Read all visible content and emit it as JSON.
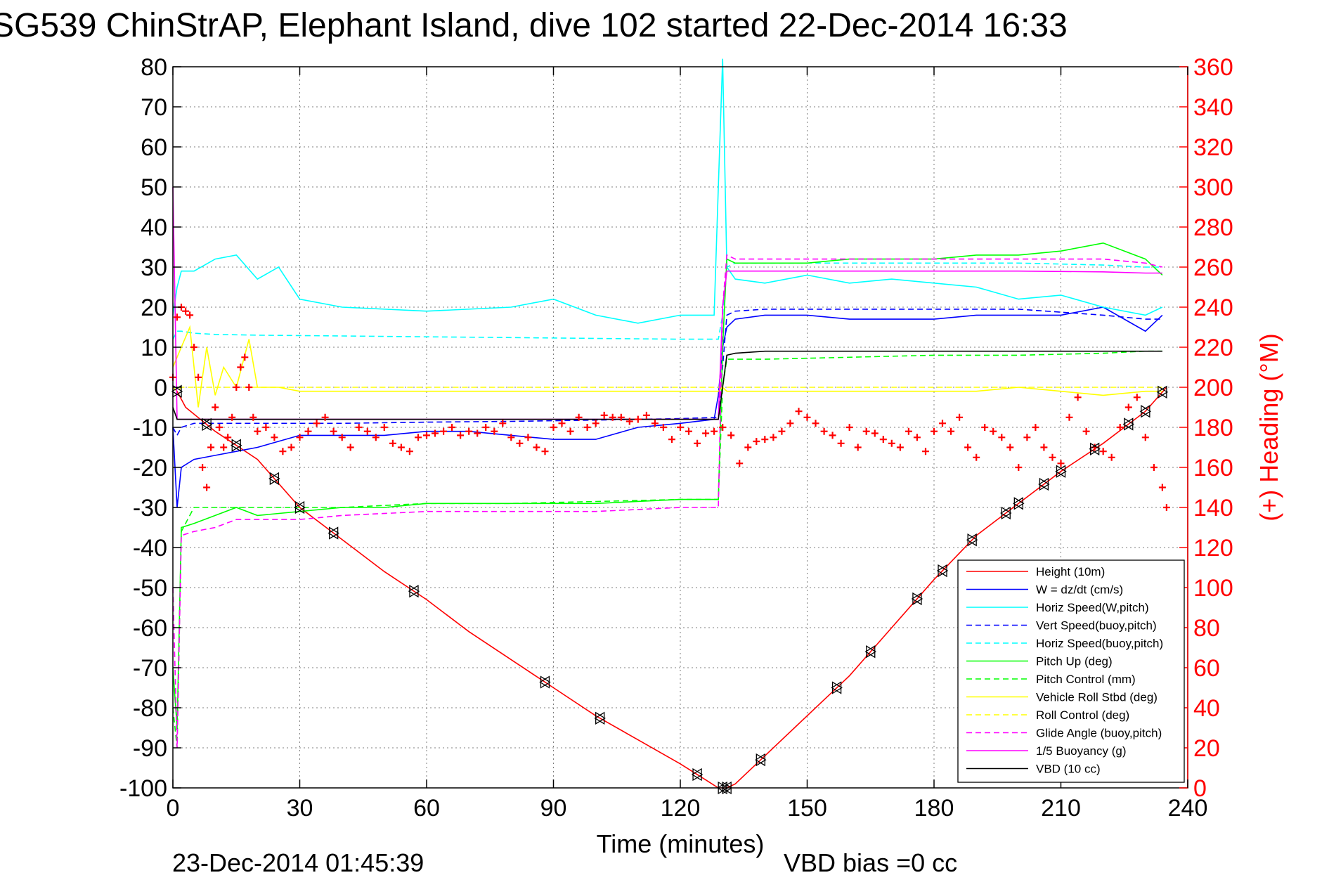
{
  "chart_data": {
    "type": "line",
    "title": "SG539 ChinStrAP, Elephant Island, dive 102 started 22-Dec-2014 16:33",
    "xlabel": "Time (minutes)",
    "ylabel_right": "(+) Heading (°M)",
    "xlim": [
      0,
      240
    ],
    "ylim": [
      -100,
      80
    ],
    "ylim_right": [
      0,
      360
    ],
    "x_ticks": [
      "0",
      "30",
      "60",
      "90",
      "120",
      "150",
      "180",
      "210",
      "240"
    ],
    "y_ticks": [
      "80",
      "70",
      "60",
      "50",
      "40",
      "30",
      "20",
      "10",
      "0",
      "-10",
      "-20",
      "-30",
      "-40",
      "-50",
      "-60",
      "-70",
      "-80",
      "-90",
      "-100"
    ],
    "y_ticks_right": [
      "360",
      "340",
      "320",
      "300",
      "280",
      "260",
      "240",
      "220",
      "200",
      "180",
      "160",
      "140",
      "120",
      "100",
      "80",
      "60",
      "40",
      "20",
      "0"
    ],
    "grid": true,
    "legend_position": "bottom-right",
    "colors": {
      "height": "#ff0000",
      "w": "#0000ff",
      "horiz": "#00ffff",
      "pitch": "#00ff00",
      "roll": "#ffff00",
      "glide": "#ff00ff",
      "vbd": "#000000",
      "heading": "#ff0000",
      "right_axis": "#ff0000"
    },
    "series": [
      {
        "name": "Height (10m)",
        "color": "#ff0000",
        "style": "solid",
        "x": [
          0,
          1,
          3,
          10,
          20,
          30,
          40,
          50,
          60,
          70,
          80,
          90,
          100,
          110,
          120,
          126,
          129,
          130,
          131,
          133,
          140,
          150,
          160,
          170,
          180,
          190,
          200,
          210,
          220,
          230,
          235
        ],
        "y": [
          0,
          -1,
          -5,
          -11,
          -18,
          -30,
          -38,
          -46,
          -53,
          -61,
          -68,
          -75,
          -82,
          -88,
          -94,
          -98,
          -100,
          -100,
          -100,
          -99,
          -92,
          -82,
          -72,
          -60,
          -48,
          -37,
          -29,
          -21,
          -14,
          -6,
          0
        ]
      },
      {
        "name": "W = dz/dt (cm/s)",
        "color": "#0000ff",
        "style": "solid",
        "x": [
          0,
          1,
          2,
          5,
          10,
          15,
          20,
          30,
          40,
          50,
          60,
          70,
          80,
          90,
          100,
          110,
          120,
          128,
          129,
          130,
          131,
          133,
          140,
          150,
          160,
          170,
          180,
          190,
          200,
          210,
          220,
          230,
          234
        ],
        "y": [
          -10,
          -30,
          -20,
          -18,
          -17,
          -16,
          -15,
          -12,
          -12,
          -12,
          -11,
          -11,
          -12,
          -13,
          -13,
          -10,
          -9,
          -8,
          -2,
          10,
          15,
          17,
          18,
          18,
          17,
          17,
          17,
          18,
          18,
          18,
          20,
          14,
          18
        ]
      },
      {
        "name": "Horiz Speed(W,pitch)",
        "color": "#00ffff",
        "style": "solid",
        "x": [
          0,
          1,
          2,
          5,
          10,
          15,
          20,
          25,
          30,
          40,
          60,
          80,
          90,
          100,
          110,
          120,
          128,
          129,
          130,
          131,
          133,
          140,
          150,
          160,
          170,
          180,
          190,
          200,
          210,
          220,
          230,
          234
        ],
        "y": [
          18,
          25,
          29,
          29,
          32,
          33,
          27,
          30,
          22,
          20,
          19,
          20,
          22,
          18,
          16,
          18,
          18,
          50,
          82,
          30,
          27,
          26,
          28,
          26,
          27,
          26,
          25,
          22,
          23,
          20,
          18,
          20
        ]
      },
      {
        "name": "Vert Speed(buoy,pitch)",
        "color": "#0000ff",
        "style": "dashed",
        "x": [
          0,
          1,
          2,
          5,
          10,
          20,
          40,
          60,
          80,
          100,
          120,
          129,
          130,
          131,
          133,
          140,
          160,
          180,
          200,
          220,
          230,
          234
        ],
        "y": [
          -10,
          -12,
          -10,
          -9,
          -9,
          -9,
          -9,
          -8.7,
          -8.5,
          -8.2,
          -7.8,
          -7.5,
          5,
          18,
          19,
          19.5,
          19.5,
          19.5,
          19.5,
          18,
          17,
          17
        ]
      },
      {
        "name": "Horiz Speed(buoy,pitch)",
        "color": "#00ffff",
        "style": "dashed",
        "x": [
          0,
          1,
          2,
          5,
          10,
          20,
          40,
          60,
          80,
          100,
          120,
          129,
          130,
          131,
          133,
          140,
          160,
          180,
          200,
          220,
          230,
          234
        ],
        "y": [
          12,
          14,
          14,
          13.5,
          13.2,
          13,
          12.8,
          12.6,
          12.4,
          12.2,
          12,
          12,
          18,
          30,
          31,
          31,
          31,
          31,
          31,
          30.5,
          30,
          30
        ]
      },
      {
        "name": "Pitch Up (deg)",
        "color": "#00ff00",
        "style": "solid",
        "x": [
          0,
          1,
          2,
          5,
          10,
          15,
          20,
          30,
          40,
          50,
          60,
          80,
          100,
          120,
          128,
          129,
          130,
          131,
          133,
          140,
          150,
          160,
          170,
          180,
          190,
          200,
          210,
          220,
          230,
          234
        ],
        "y": [
          -70,
          -85,
          -35,
          -34,
          -32,
          -30,
          -32,
          -31,
          -30,
          -30,
          -29,
          -29,
          -29,
          -28,
          -28,
          -28,
          10,
          32,
          31,
          31,
          31,
          32,
          32,
          32,
          33,
          33,
          34,
          36,
          32,
          28
        ]
      },
      {
        "name": "Pitch Control (mm)",
        "color": "#00ff00",
        "style": "dashed",
        "x": [
          0,
          1,
          2,
          5,
          10,
          20,
          40,
          60,
          80,
          100,
          120,
          129,
          130,
          131,
          133,
          140,
          160,
          180,
          200,
          220,
          230,
          234
        ],
        "y": [
          -80,
          -90,
          -36,
          -30,
          -30,
          -30,
          -30,
          -29,
          -29,
          -28.5,
          -28,
          -28,
          0,
          7,
          7,
          7,
          7.5,
          8,
          8,
          8.5,
          9,
          9
        ]
      },
      {
        "name": "Vehicle Roll Stbd (deg)",
        "color": "#ffff00",
        "style": "solid",
        "x": [
          0,
          2,
          4,
          6,
          8,
          10,
          12,
          15,
          18,
          20,
          25,
          30,
          40,
          50,
          60,
          70,
          80,
          90,
          100,
          110,
          120,
          129,
          130,
          131,
          140,
          150,
          160,
          170,
          180,
          190,
          200,
          210,
          220,
          230,
          234
        ],
        "y": [
          5,
          10,
          15,
          -5,
          10,
          -2,
          5,
          0,
          12,
          0,
          0,
          -1,
          -1,
          -1,
          -1,
          -1,
          -1,
          -1,
          -1,
          -1,
          -1,
          -1,
          0,
          -1,
          -1,
          -1,
          -1,
          -1,
          -1,
          -1,
          0,
          -1,
          -2,
          -1,
          -1
        ]
      },
      {
        "name": "Roll Control (deg)",
        "color": "#ffff00",
        "style": "dashed",
        "x": [
          0,
          1,
          2,
          5,
          10,
          20,
          40,
          60,
          80,
          100,
          120,
          129,
          130,
          131,
          140,
          160,
          180,
          200,
          210,
          220,
          230,
          234
        ],
        "y": [
          0,
          -1,
          0,
          0,
          0,
          0,
          0,
          0,
          0,
          0,
          0,
          0,
          0,
          0,
          0,
          0,
          0,
          0,
          0,
          0,
          0,
          0
        ]
      },
      {
        "name": "Glide Angle (buoy,pitch)",
        "color": "#ff00ff",
        "style": "dashed",
        "x": [
          0,
          1,
          2,
          5,
          10,
          15,
          20,
          30,
          40,
          60,
          80,
          100,
          120,
          128,
          129,
          130,
          131,
          133,
          140,
          160,
          180,
          200,
          220,
          230,
          234
        ],
        "y": [
          -50,
          -90,
          -37,
          -36,
          -35,
          -33,
          -33,
          -33,
          -32,
          -31,
          -31,
          -31,
          -30,
          -30,
          -30,
          20,
          33,
          32,
          32,
          32,
          32,
          32,
          32,
          31,
          30
        ]
      },
      {
        "name": "1/5 Buoyancy (g)",
        "color": "#ff00ff",
        "style": "solid",
        "x": [
          0,
          1,
          2,
          5,
          10,
          20,
          40,
          60,
          80,
          100,
          120,
          129,
          130,
          131,
          133,
          140,
          160,
          180,
          200,
          220,
          230,
          234
        ],
        "y": [
          50,
          -8,
          -8,
          -8,
          -8,
          -8,
          -8,
          -8,
          -8,
          -8,
          -8,
          -8,
          20,
          29,
          29,
          29,
          29,
          29,
          29,
          28.8,
          28.5,
          28.5
        ]
      },
      {
        "name": "VBD (10 cc)",
        "color": "#000000",
        "style": "solid",
        "x": [
          0,
          1,
          2,
          5,
          10,
          20,
          40,
          60,
          80,
          100,
          120,
          129,
          130,
          131,
          133,
          140,
          160,
          180,
          200,
          220,
          230,
          234
        ],
        "y": [
          -5,
          -8,
          -8,
          -8,
          -8,
          -8,
          -8,
          -8,
          -8,
          -8,
          -8,
          -8,
          0,
          8,
          8.5,
          9,
          9,
          9,
          9,
          9,
          9,
          9
        ]
      }
    ],
    "heading": {
      "name": "(+) Heading (°M)",
      "color": "#ff0000",
      "x": [
        0,
        1,
        2,
        3,
        4,
        5,
        6,
        7,
        8,
        9,
        10,
        11,
        12,
        13,
        14,
        15,
        16,
        17,
        18,
        19,
        20,
        22,
        24,
        26,
        28,
        30,
        32,
        34,
        36,
        38,
        40,
        42,
        44,
        46,
        48,
        50,
        52,
        54,
        56,
        58,
        60,
        62,
        64,
        66,
        68,
        70,
        72,
        74,
        76,
        78,
        80,
        82,
        84,
        86,
        88,
        90,
        92,
        94,
        96,
        98,
        100,
        102,
        104,
        106,
        108,
        110,
        112,
        114,
        116,
        118,
        120,
        122,
        124,
        126,
        128,
        130,
        132,
        134,
        136,
        138,
        140,
        142,
        144,
        146,
        148,
        150,
        152,
        154,
        156,
        158,
        160,
        162,
        164,
        166,
        168,
        170,
        172,
        174,
        176,
        178,
        180,
        182,
        184,
        186,
        188,
        190,
        192,
        194,
        196,
        198,
        200,
        202,
        204,
        206,
        208,
        210,
        212,
        214,
        216,
        218,
        220,
        222,
        224,
        226,
        228,
        230,
        232,
        234,
        235
      ],
      "y": [
        205,
        235,
        240,
        238,
        236,
        220,
        205,
        160,
        150,
        170,
        190,
        180,
        170,
        175,
        185,
        200,
        210,
        215,
        200,
        185,
        178,
        180,
        175,
        168,
        170,
        175,
        178,
        182,
        185,
        178,
        175,
        170,
        180,
        178,
        175,
        180,
        172,
        170,
        168,
        175,
        176,
        177,
        178,
        180,
        176,
        178,
        177,
        180,
        178,
        182,
        175,
        172,
        175,
        170,
        168,
        180,
        182,
        178,
        185,
        180,
        182,
        186,
        185,
        185,
        183,
        184,
        186,
        182,
        180,
        174,
        180,
        178,
        172,
        177,
        178,
        180,
        176,
        162,
        170,
        173,
        174,
        175,
        178,
        182,
        188,
        185,
        182,
        178,
        176,
        172,
        180,
        170,
        178,
        177,
        174,
        172,
        170,
        178,
        175,
        168,
        178,
        182,
        178,
        185,
        170,
        165,
        180,
        178,
        175,
        170,
        160,
        175,
        180,
        170,
        165,
        162,
        185,
        195,
        178,
        170,
        168,
        165,
        180,
        190,
        195,
        175,
        160,
        150,
        140
      ]
    },
    "dive_markers": {
      "name": "black triangles along Height",
      "x": [
        1,
        8,
        15,
        24,
        30,
        38,
        57,
        88,
        101,
        124,
        130,
        131,
        139,
        157,
        165,
        176,
        182,
        189,
        197,
        200,
        206,
        210,
        218,
        226,
        230,
        234
      ]
    },
    "legend": [
      {
        "label": "Height (10m)",
        "color": "#ff0000",
        "style": "solid"
      },
      {
        "label": "W = dz/dt (cm/s)",
        "color": "#0000ff",
        "style": "solid"
      },
      {
        "label": "Horiz Speed(W,pitch)",
        "color": "#00ffff",
        "style": "solid"
      },
      {
        "label": "Vert Speed(buoy,pitch)",
        "color": "#0000ff",
        "style": "dashed"
      },
      {
        "label": "Horiz Speed(buoy,pitch)",
        "color": "#00ffff",
        "style": "dashed"
      },
      {
        "label": "Pitch Up (deg)",
        "color": "#00ff00",
        "style": "solid"
      },
      {
        "label": "Pitch Control (mm)",
        "color": "#00ff00",
        "style": "dashed"
      },
      {
        "label": "Vehicle Roll Stbd (deg)",
        "color": "#ffff00",
        "style": "solid"
      },
      {
        "label": "Roll Control (deg)",
        "color": "#ffff00",
        "style": "dashed"
      },
      {
        "label": "Glide Angle (buoy,pitch)",
        "color": "#ff00ff",
        "style": "dashed"
      },
      {
        "label": "1/5 Buoyancy (g)",
        "color": "#ff00ff",
        "style": "solid"
      },
      {
        "label": "VBD (10 cc)",
        "color": "#000000",
        "style": "solid"
      }
    ]
  },
  "footer": {
    "timestamp": "23-Dec-2014 01:45:39",
    "vbd_bias": "VBD bias =0 cc"
  }
}
